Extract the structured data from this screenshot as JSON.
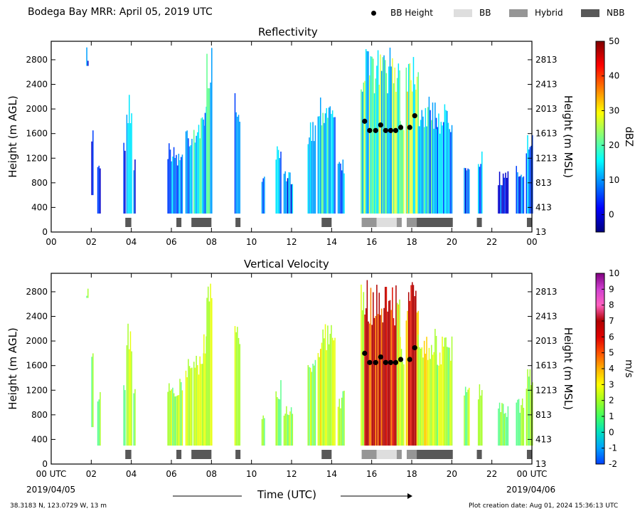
{
  "header": {
    "title": "Bodega Bay MRR:  April 05, 2019 UTC",
    "legend": [
      {
        "label": "BB Height",
        "symbol": "dot",
        "color": "#000000"
      },
      {
        "label": "BB",
        "symbol": "rect",
        "color": "#dedede"
      },
      {
        "label": "Hybrid",
        "symbol": "rect",
        "color": "#969696"
      },
      {
        "label": "NBB",
        "symbol": "rect",
        "color": "#585858"
      }
    ]
  },
  "footer": {
    "coords": "38.3183 N, 123.0729 W, 13 m",
    "created": "Plot creation date: Aug 01, 2024 15:36:13 UTC",
    "time_label": "Time (UTC)",
    "start_date": "2019/04/05",
    "end_date": "2019/04/06"
  },
  "chart_data": [
    {
      "type": "heatmap",
      "title": "Reflectivity",
      "xlabel": "",
      "ylabel": "Height (m AGL)",
      "ylabel_right": "Height (m MSL)",
      "xlim": [
        0,
        24
      ],
      "ylim": [
        0,
        3100
      ],
      "xticks": [
        "00",
        "02",
        "04",
        "06",
        "08",
        "10",
        "12",
        "14",
        "16",
        "18",
        "20",
        "22",
        "00"
      ],
      "yticks": [
        0,
        400,
        800,
        1200,
        1600,
        2000,
        2400,
        2800
      ],
      "yticks_right": [
        "13",
        "413",
        "813",
        "1213",
        "1613",
        "2013",
        "2413",
        "2813"
      ],
      "colorbar": {
        "label": "dBZ",
        "min": -5,
        "max": 50,
        "ticks": [
          0,
          10,
          20,
          30,
          40,
          50
        ],
        "colors": [
          "#00007f",
          "#0000ff",
          "#007fff",
          "#00ffff",
          "#7fff7f",
          "#ffff00",
          "#ff7f00",
          "#ff0000",
          "#7f0000"
        ]
      }
    },
    {
      "type": "heatmap",
      "title": "Vertical Velocity",
      "xlabel": "Time (UTC)",
      "ylabel": "Height (m AGL)",
      "ylabel_right": "Height (m MSL)",
      "xlim": [
        0,
        24
      ],
      "ylim": [
        0,
        3100
      ],
      "xticks": [
        "00 UTC",
        "02",
        "04",
        "06",
        "08",
        "10",
        "12",
        "14",
        "16",
        "18",
        "20",
        "22",
        "00 UTC"
      ],
      "yticks": [
        0,
        400,
        800,
        1200,
        1600,
        2000,
        2400,
        2800
      ],
      "yticks_right": [
        "13",
        "413",
        "813",
        "1213",
        "1613",
        "2013",
        "2413",
        "2813"
      ],
      "colorbar": {
        "label": "m/s",
        "min": -2,
        "max": 10,
        "ticks": [
          -2,
          -1,
          0,
          1,
          2,
          3,
          4,
          5,
          6,
          7,
          8,
          9,
          10
        ],
        "colors": [
          "#0040ff",
          "#00a0ff",
          "#00e0c0",
          "#40ff60",
          "#a0ff20",
          "#ffff00",
          "#ffb000",
          "#ff5000",
          "#e00000",
          "#b00000",
          "#ff60c0",
          "#d040d0",
          "#800080"
        ]
      }
    }
  ],
  "bright_band": {
    "bb_height_points": [
      {
        "t": 15.65,
        "h": 1800
      },
      {
        "t": 15.9,
        "h": 1650
      },
      {
        "t": 16.2,
        "h": 1650
      },
      {
        "t": 16.45,
        "h": 1740
      },
      {
        "t": 16.7,
        "h": 1650
      },
      {
        "t": 16.95,
        "h": 1650
      },
      {
        "t": 17.2,
        "h": 1650
      },
      {
        "t": 17.45,
        "h": 1700
      },
      {
        "t": 17.9,
        "h": 1700
      },
      {
        "t": 18.15,
        "h": 1890
      }
    ],
    "segments": [
      {
        "start": 3.7,
        "end": 4.0,
        "kind": "NBB"
      },
      {
        "start": 6.25,
        "end": 6.5,
        "kind": "NBB"
      },
      {
        "start": 7.0,
        "end": 8.0,
        "kind": "NBB"
      },
      {
        "start": 9.2,
        "end": 9.45,
        "kind": "NBB"
      },
      {
        "start": 13.5,
        "end": 14.0,
        "kind": "NBB"
      },
      {
        "start": 15.5,
        "end": 16.25,
        "kind": "Hybrid"
      },
      {
        "start": 16.25,
        "end": 17.25,
        "kind": "BB"
      },
      {
        "start": 17.25,
        "end": 17.5,
        "kind": "Hybrid"
      },
      {
        "start": 17.75,
        "end": 18.25,
        "kind": "Hybrid"
      },
      {
        "start": 18.25,
        "end": 20.05,
        "kind": "NBB"
      },
      {
        "start": 21.25,
        "end": 21.5,
        "kind": "NBB"
      },
      {
        "start": 23.75,
        "end": 24.0,
        "kind": "NBB"
      }
    ]
  }
}
